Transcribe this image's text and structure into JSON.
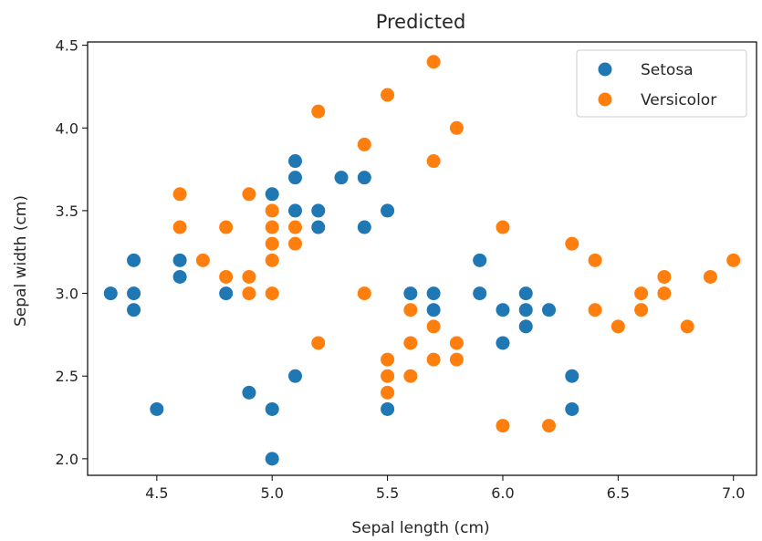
{
  "chart_data": {
    "type": "scatter",
    "title": "Predicted",
    "xlabel": "Sepal length (cm)",
    "ylabel": "Sepal width (cm)",
    "xlim": [
      4.2,
      7.1
    ],
    "ylim": [
      1.9,
      4.52
    ],
    "xticks": [
      4.5,
      5.0,
      5.5,
      6.0,
      6.5,
      7.0
    ],
    "xtick_labels": [
      "4.5",
      "5.0",
      "5.5",
      "6.0",
      "6.5",
      "7.0"
    ],
    "yticks": [
      2.0,
      2.5,
      3.0,
      3.5,
      4.0,
      4.5
    ],
    "ytick_labels": [
      "2.0",
      "2.5",
      "3.0",
      "3.5",
      "4.0",
      "4.5"
    ],
    "grid": false,
    "legend_position": "top-right",
    "series": [
      {
        "name": "Setosa",
        "color": "#1f77b4",
        "points": [
          [
            4.3,
            3.0
          ],
          [
            4.4,
            3.2
          ],
          [
            4.4,
            3.0
          ],
          [
            4.4,
            2.9
          ],
          [
            4.5,
            2.3
          ],
          [
            4.6,
            3.2
          ],
          [
            4.6,
            3.1
          ],
          [
            4.8,
            3.0
          ],
          [
            4.9,
            2.4
          ],
          [
            5.0,
            3.6
          ],
          [
            5.0,
            2.3
          ],
          [
            5.0,
            2.0
          ],
          [
            5.1,
            3.8
          ],
          [
            5.1,
            3.7
          ],
          [
            5.1,
            3.5
          ],
          [
            5.1,
            2.5
          ],
          [
            5.2,
            3.5
          ],
          [
            5.2,
            3.4
          ],
          [
            5.3,
            3.7
          ],
          [
            5.4,
            3.7
          ],
          [
            5.4,
            3.4
          ],
          [
            5.5,
            3.5
          ],
          [
            5.5,
            2.3
          ],
          [
            5.6,
            3.0
          ],
          [
            5.7,
            3.0
          ],
          [
            5.7,
            2.9
          ],
          [
            5.9,
            3.2
          ],
          [
            5.9,
            3.0
          ],
          [
            6.0,
            2.9
          ],
          [
            6.0,
            2.7
          ],
          [
            6.1,
            3.0
          ],
          [
            6.1,
            2.9
          ],
          [
            6.1,
            2.8
          ],
          [
            6.2,
            2.9
          ],
          [
            6.3,
            2.5
          ],
          [
            6.3,
            2.3
          ]
        ]
      },
      {
        "name": "Versicolor",
        "color": "#ff7f0e",
        "points": [
          [
            4.6,
            3.6
          ],
          [
            4.6,
            3.4
          ],
          [
            4.7,
            3.2
          ],
          [
            4.8,
            3.4
          ],
          [
            4.8,
            3.1
          ],
          [
            4.9,
            3.6
          ],
          [
            4.9,
            3.1
          ],
          [
            4.9,
            3.0
          ],
          [
            5.0,
            3.5
          ],
          [
            5.0,
            3.4
          ],
          [
            5.0,
            3.3
          ],
          [
            5.0,
            3.2
          ],
          [
            5.0,
            3.0
          ],
          [
            5.1,
            3.4
          ],
          [
            5.1,
            3.3
          ],
          [
            5.2,
            4.1
          ],
          [
            5.2,
            2.7
          ],
          [
            5.4,
            3.9
          ],
          [
            5.4,
            3.0
          ],
          [
            5.5,
            4.2
          ],
          [
            5.5,
            2.6
          ],
          [
            5.5,
            2.5
          ],
          [
            5.5,
            2.4
          ],
          [
            5.6,
            2.9
          ],
          [
            5.6,
            2.7
          ],
          [
            5.6,
            2.5
          ],
          [
            5.7,
            4.4
          ],
          [
            5.7,
            3.8
          ],
          [
            5.7,
            2.8
          ],
          [
            5.7,
            2.6
          ],
          [
            5.8,
            4.0
          ],
          [
            5.8,
            2.7
          ],
          [
            5.8,
            2.6
          ],
          [
            6.0,
            3.4
          ],
          [
            6.0,
            2.2
          ],
          [
            6.2,
            2.2
          ],
          [
            6.3,
            3.3
          ],
          [
            6.4,
            3.2
          ],
          [
            6.4,
            2.9
          ],
          [
            6.5,
            2.8
          ],
          [
            6.6,
            3.0
          ],
          [
            6.6,
            2.9
          ],
          [
            6.7,
            3.1
          ],
          [
            6.7,
            3.0
          ],
          [
            6.8,
            2.8
          ],
          [
            6.9,
            3.1
          ],
          [
            7.0,
            3.2
          ]
        ]
      }
    ]
  }
}
